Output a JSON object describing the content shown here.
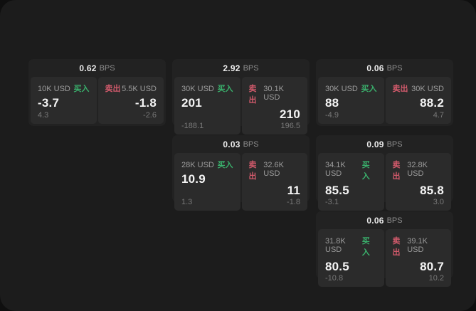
{
  "labels": {
    "bps_unit": "BPS",
    "buy": "买入",
    "sell": "卖出"
  },
  "colors": {
    "buy": "#3ab06c",
    "sell": "#d15a6b",
    "window_bg": "#1c1c1c",
    "card_bg": "#222222",
    "subpanel_bg": "#2b2b2b"
  },
  "cards": [
    {
      "bps": "0.62",
      "buy": {
        "size": "10K USD",
        "value": "-3.7",
        "delta": "4.3"
      },
      "sell": {
        "size": "5.5K USD",
        "value": "-1.8",
        "delta": "-2.6"
      }
    },
    {
      "bps": "2.92",
      "buy": {
        "size": "30K USD",
        "value": "201",
        "delta": "-188.1"
      },
      "sell": {
        "size": "30.1K USD",
        "value": "210",
        "delta": "196.5"
      }
    },
    {
      "bps": "0.06",
      "buy": {
        "size": "30K USD",
        "value": "88",
        "delta": "-4.9"
      },
      "sell": {
        "size": "30K USD",
        "value": "88.2",
        "delta": "4.7"
      }
    },
    {
      "bps": "0.03",
      "buy": {
        "size": "28K USD",
        "value": "10.9",
        "delta": "1.3"
      },
      "sell": {
        "size": "32.6K USD",
        "value": "11",
        "delta": "-1.8"
      }
    },
    {
      "bps": "0.09",
      "buy": {
        "size": "34.1K USD",
        "value": "85.5",
        "delta": "-3.1"
      },
      "sell": {
        "size": "32.8K USD",
        "value": "85.8",
        "delta": "3.0"
      }
    },
    {
      "bps": "0.06",
      "buy": {
        "size": "31.8K USD",
        "value": "80.5",
        "delta": "-10.8"
      },
      "sell": {
        "size": "39.1K USD",
        "value": "80.7",
        "delta": "10.2"
      }
    }
  ]
}
